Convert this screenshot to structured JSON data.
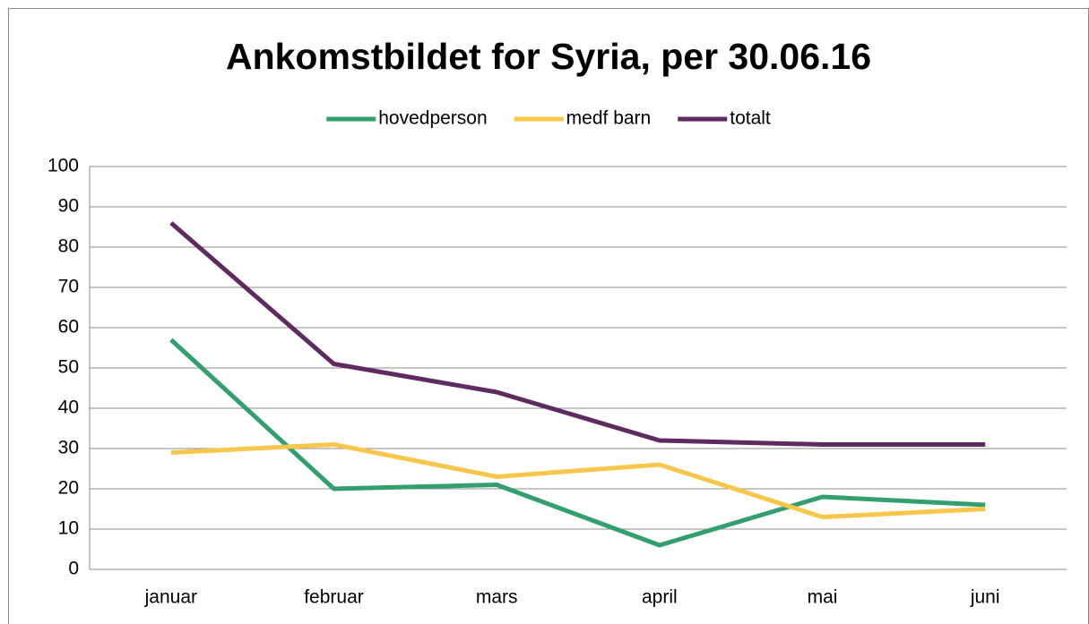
{
  "chart_data": {
    "type": "line",
    "title": "Ankomstbildet for Syria, per 30.06.16",
    "categories": [
      "januar",
      "februar",
      "mars",
      "april",
      "mai",
      "juni"
    ],
    "series": [
      {
        "name": "hovedperson",
        "color": "#339e6e",
        "values": [
          57,
          20,
          21,
          6,
          18,
          16
        ]
      },
      {
        "name": "medf barn",
        "color": "#f7c64b",
        "values": [
          29,
          31,
          23,
          26,
          13,
          15
        ]
      },
      {
        "name": "totalt",
        "color": "#5e2a60",
        "values": [
          86,
          51,
          44,
          32,
          31,
          31
        ]
      }
    ],
    "ylim": [
      0,
      100
    ],
    "yticks": [
      0,
      10,
      20,
      30,
      40,
      50,
      60,
      70,
      80,
      90,
      100
    ],
    "grid": true,
    "legend": "top"
  }
}
